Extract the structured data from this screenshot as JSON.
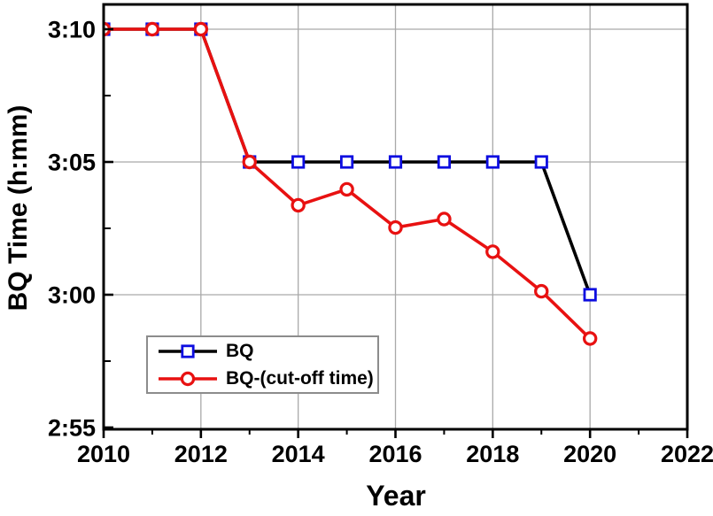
{
  "figure": {
    "x_axis_title": "Year",
    "y_axis_title": "BQ Time (h:mm)"
  },
  "chart_data": {
    "type": "line",
    "x": [
      2010,
      2011,
      2012,
      2013,
      2014,
      2015,
      2016,
      2017,
      2018,
      2019,
      2020
    ],
    "series": [
      {
        "name": "BQ",
        "line_color": "#000000",
        "marker": "square",
        "marker_color": "#0d0de0",
        "values_minutes": [
          190,
          190,
          190,
          185,
          185,
          185,
          185,
          185,
          185,
          185,
          180
        ],
        "values_hmm": [
          "3:10",
          "3:10",
          "3:10",
          "3:05",
          "3:05",
          "3:05",
          "3:05",
          "3:05",
          "3:05",
          "3:05",
          "3:00"
        ]
      },
      {
        "name": "BQ-(cut-off time)",
        "line_color": "#e81111",
        "marker": "circle",
        "marker_color": "#e81111",
        "values_minutes": [
          190,
          190,
          190,
          185,
          183.37,
          183.97,
          182.53,
          182.85,
          181.62,
          180.13,
          178.35
        ],
        "values_hmm_approx": [
          "3:10:00",
          "3:10:00",
          "3:10:00",
          "3:05:00",
          "3:03:22",
          "3:03:58",
          "3:02:32",
          "3:02:51",
          "3:01:37",
          "3:00:08",
          "2:58:21"
        ]
      }
    ],
    "xlabel": "Year",
    "ylabel": "BQ Time (h:mm)",
    "xlim": [
      2010,
      2022
    ],
    "ylim_minutes": [
      174.93,
      190.93
    ],
    "x_ticks": {
      "major": [
        2010,
        2012,
        2014,
        2016,
        2018,
        2020,
        2022
      ],
      "major_labels": [
        "2010",
        "2012",
        "2014",
        "2016",
        "2018",
        "2020",
        "2022"
      ],
      "minor": [
        2011,
        2013,
        2015,
        2017,
        2019,
        2021
      ]
    },
    "y_ticks": {
      "major_minutes": [
        175,
        180,
        185,
        190
      ],
      "major_labels": [
        "2:55",
        "3:00",
        "3:05",
        "3:10"
      ],
      "minor_minutes": [
        177.5,
        182.5,
        187.5
      ]
    },
    "grid": {
      "on": true,
      "x_lines": [
        2012,
        2014,
        2016,
        2018,
        2020
      ],
      "y_lines_minutes": [
        180,
        185,
        190
      ],
      "color": "#a9a9a9"
    },
    "legend": {
      "position": "lower-left",
      "items": [
        "BQ",
        "BQ-(cut-off time)"
      ]
    }
  },
  "colors": {
    "frame": "#000000",
    "tick": "#000000",
    "tick_label": "#000000",
    "grid": "#a9a9a9",
    "legend_border": "#8c8c8c",
    "background": "#ffffff"
  }
}
